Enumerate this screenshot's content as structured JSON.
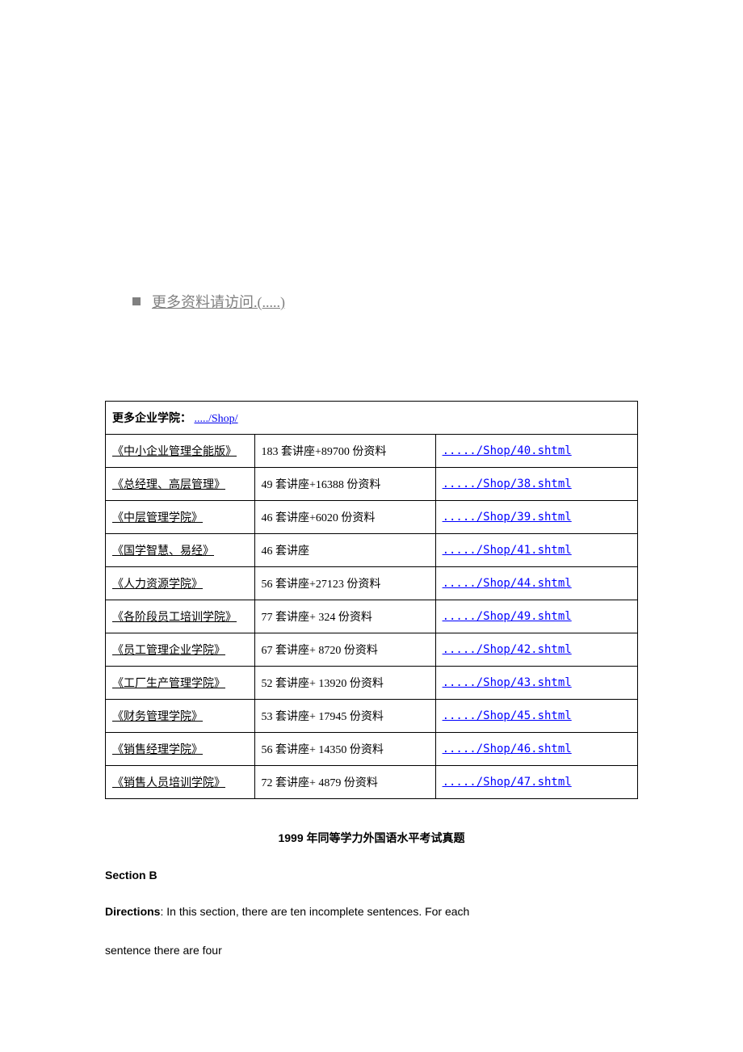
{
  "top_link": {
    "prefix": "更多资料请访问",
    "suffix": ".(.....)"
  },
  "table": {
    "header_label": "更多企业学院：",
    "header_link": "...../Shop/",
    "rows": [
      {
        "name": "《中小企业管理全能版》",
        "desc": "183 套讲座+89700 份资料",
        "url": "...../Shop/40.shtml"
      },
      {
        "name": "《总经理、高层管理》",
        "desc": "49 套讲座+16388 份资料",
        "url": "...../Shop/38.shtml"
      },
      {
        "name": "《中层管理学院》",
        "desc": "46 套讲座+6020 份资料",
        "url": "...../Shop/39.shtml"
      },
      {
        "name": "《国学智慧、易经》",
        "desc": "46 套讲座",
        "url": "...../Shop/41.shtml"
      },
      {
        "name": "《人力资源学院》",
        "desc": "56 套讲座+27123 份资料",
        "url": "...../Shop/44.shtml"
      },
      {
        "name": "《各阶段员工培训学院》",
        "desc": "77 套讲座+ 324 份资料",
        "url": "...../Shop/49.shtml"
      },
      {
        "name": "《员工管理企业学院》",
        "desc": "67 套讲座+ 8720 份资料",
        "url": "...../Shop/42.shtml"
      },
      {
        "name": "《工厂生产管理学院》",
        "desc": "52 套讲座+ 13920 份资料",
        "url": "...../Shop/43.shtml"
      },
      {
        "name": "《财务管理学院》",
        "desc": "53 套讲座+ 17945 份资料",
        "url": "...../Shop/45.shtml"
      },
      {
        "name": "《销售经理学院》",
        "desc": "56 套讲座+ 14350 份资料",
        "url": "...../Shop/46.shtml"
      },
      {
        "name": "《销售人员培训学院》",
        "desc": "72 套讲座+ 4879 份资料",
        "url": "...../Shop/47.shtml"
      }
    ]
  },
  "exam": {
    "title": "1999 年同等学力外国语水平考试真题",
    "section": "Section B",
    "directions_label": "Directions",
    "directions_text_1": ": In this section, there are ten incomplete sentences. For each",
    "directions_text_2": "sentence there are four"
  },
  "colors": {
    "text": "#000000",
    "link_blue": "#0000ff",
    "gray": "#808080",
    "background": "#ffffff",
    "border": "#000000"
  }
}
